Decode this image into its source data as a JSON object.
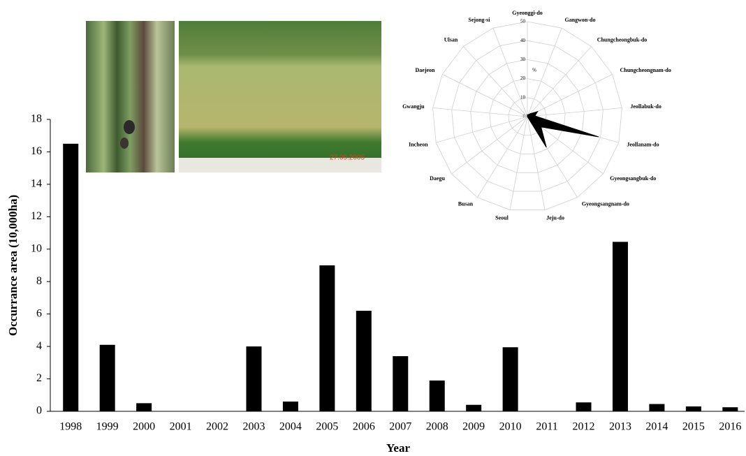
{
  "chart_data": [
    {
      "type": "bar",
      "x_label": "Year",
      "y_label": "Occurrance area (10,000ha)",
      "annotation": "27.09.2005",
      "categories": [
        "1998",
        "1999",
        "2000",
        "2001",
        "2002",
        "2003",
        "2004",
        "2005",
        "2006",
        "2007",
        "2008",
        "2009",
        "2010",
        "2011",
        "2012",
        "2013",
        "2014",
        "2015",
        "2016"
      ],
      "values": [
        16.5,
        4.1,
        0.5,
        0,
        0,
        4.0,
        0.6,
        9.0,
        6.2,
        3.4,
        1.9,
        0.4,
        3.95,
        0,
        0.55,
        10.45,
        0.45,
        0.3,
        0.25
      ],
      "color": "#000000",
      "ylim": [
        0,
        18
      ],
      "yticks": [
        0,
        2,
        4,
        6,
        8,
        10,
        12,
        14,
        16,
        18
      ],
      "grid": false
    },
    {
      "type": "radar",
      "y_label": "%",
      "categories": [
        "Gyeonggi-do",
        "Gangwon-do",
        "Chungcheongbuk-do",
        "Chungcheongnam-do",
        "Jeollabuk-do",
        "Jeollanam-do",
        "Gyeongsangbuk-do",
        "Gyeongsangnam-do",
        "Jeju-do",
        "Seoul",
        "Busan",
        "Daegu",
        "Incheon",
        "Gwangju",
        "Daejeon",
        "Ulsan",
        "Sejong-si"
      ],
      "values": [
        1,
        1,
        2,
        6,
        4,
        39,
        9,
        19,
        0,
        0,
        0,
        0,
        0,
        0,
        0,
        0,
        0
      ],
      "color": "#000000",
      "ylim": [
        0,
        50
      ],
      "yticks": [
        0,
        10,
        20,
        30,
        40,
        50
      ],
      "grid": true
    }
  ]
}
